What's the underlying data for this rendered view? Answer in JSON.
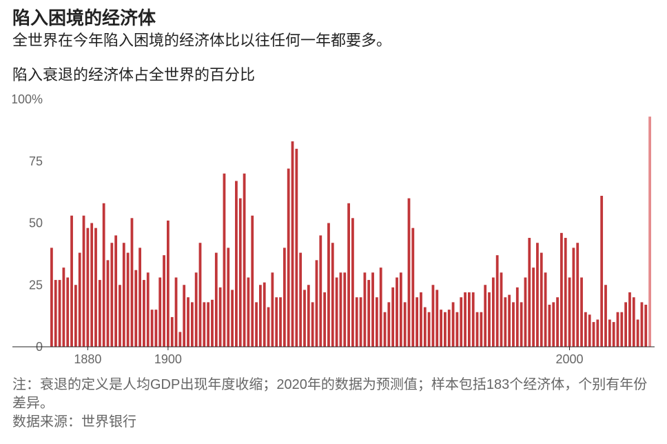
{
  "text": {
    "title": "陷入困境的经济体",
    "subtitle": "全世界在今年陷入困境的经济体比以往任何一年都要多。",
    "axisTitle": "陷入衰退的经济体占全世界的百分比",
    "footnote1": "注：衰退的定义是人均GDP出现年度收缩；2020年的数据为预测值；样本包括183个经济体，个别有年份差异。",
    "footnote2": "数据来源：世界银行"
  },
  "chart": {
    "type": "bar",
    "background_color": "#ffffff",
    "bar_color": "#c13639",
    "highlight_color": "#e58b8d",
    "axis_color": "#222222",
    "grid_color": "#dddddd",
    "tick_label_color": "#666666",
    "tick_label_fontsize": 18,
    "bar_gap_ratio": 0.35,
    "x": {
      "start_year": 1871,
      "ticks": [
        1880,
        1900,
        2000
      ]
    },
    "y": {
      "min": 0,
      "max": 100,
      "ticks": [
        0,
        25,
        50,
        75,
        100
      ],
      "tick_suffix_on_top": "%"
    },
    "highlight_last": true,
    "values": [
      40,
      27,
      27,
      32,
      28,
      53,
      25,
      38,
      53,
      48,
      50,
      48,
      27,
      58,
      35,
      42,
      45,
      25,
      42,
      38,
      52,
      31,
      40,
      27,
      30,
      15,
      15,
      28,
      37,
      51,
      12,
      28,
      6,
      25,
      20,
      18,
      30,
      42,
      18,
      18,
      19,
      38,
      24,
      70,
      40,
      23,
      67,
      60,
      70,
      28,
      53,
      18,
      25,
      26,
      16,
      30,
      20,
      20,
      40,
      72,
      83,
      80,
      38,
      23,
      25,
      18,
      35,
      45,
      22,
      50,
      42,
      28,
      30,
      30,
      58,
      52,
      20,
      20,
      30,
      27,
      30,
      20,
      32,
      14,
      18,
      24,
      28,
      30,
      18,
      60,
      48,
      20,
      22,
      16,
      14,
      25,
      23,
      15,
      14,
      15,
      18,
      14,
      20,
      22,
      22,
      22,
      14,
      14,
      25,
      22,
      28,
      37,
      30,
      20,
      21,
      18,
      24,
      18,
      28,
      44,
      32,
      42,
      38,
      30,
      17,
      18,
      20,
      46,
      44,
      28,
      40,
      42,
      28,
      14,
      13,
      10,
      11,
      61,
      25,
      11,
      10,
      14,
      14,
      18,
      22,
      20,
      11,
      18,
      17,
      93
    ]
  }
}
